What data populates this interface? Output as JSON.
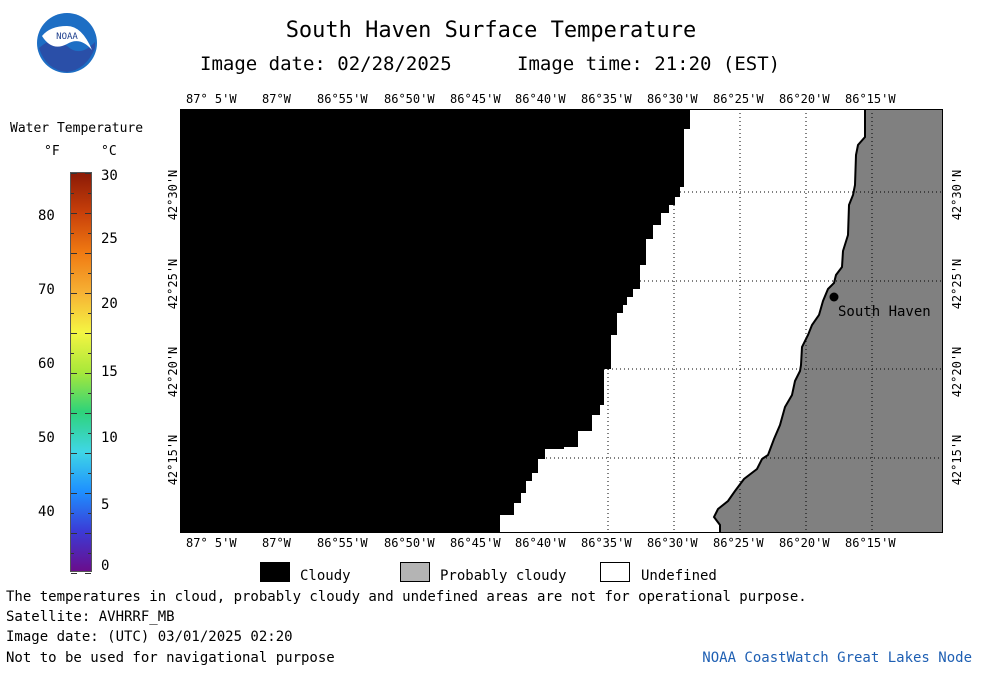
{
  "header": {
    "title": "South Haven Surface Temperature",
    "image_date": "Image date: 02/28/2025",
    "image_time": "Image time: 21:20 (EST)"
  },
  "logo": {
    "text": "NOAA"
  },
  "colorbar": {
    "title": "Water Temperature",
    "unit_f": "°F",
    "unit_c": "°C",
    "f_ticks": [
      "80",
      "70",
      "60",
      "50",
      "40"
    ],
    "c_ticks": [
      "30",
      "25",
      "20",
      "15",
      "10",
      "5",
      "0"
    ],
    "colors": [
      "#6a0d8c",
      "#3b3bd6",
      "#1e90ff",
      "#3fd6e6",
      "#2ed37a",
      "#a8e83a",
      "#f5f542",
      "#f6b134",
      "#f07a12",
      "#c8400a",
      "#8b1a06"
    ]
  },
  "map": {
    "lon_labels": [
      "87° 5'W",
      "87°W",
      "86°55'W",
      "86°50'W",
      "86°45'W",
      "86°40'W",
      "86°35'W",
      "86°30'W",
      "86°25'W",
      "86°20'W",
      "86°15'W"
    ],
    "lat_labels": [
      "42°30'N",
      "42°25'N",
      "42°20'N",
      "42°15'N"
    ],
    "city_label": "South Haven",
    "colors": {
      "cloudy": "#000000",
      "probably_cloudy": "#808080",
      "undefined": "#ffffff"
    }
  },
  "legend": {
    "cloudy": "Cloudy",
    "probably_cloudy": "Probably cloudy",
    "undefined": "Undefined",
    "colors": {
      "cloudy": "#000000",
      "probably_cloudy": "#b4b4b4",
      "undefined": "#ffffff"
    }
  },
  "footer": {
    "note": "The temperatures in cloud, probably cloudy and undefined areas are not for operational purpose.",
    "satellite": "Satellite: AVHRRF_MB",
    "utc_date": "Image date: (UTC) 03/01/2025  02:20",
    "nav_warning": "Not to be used for navigational purpose",
    "credit": "NOAA CoastWatch Great Lakes Node",
    "credit_color": "#1e5fb3"
  }
}
